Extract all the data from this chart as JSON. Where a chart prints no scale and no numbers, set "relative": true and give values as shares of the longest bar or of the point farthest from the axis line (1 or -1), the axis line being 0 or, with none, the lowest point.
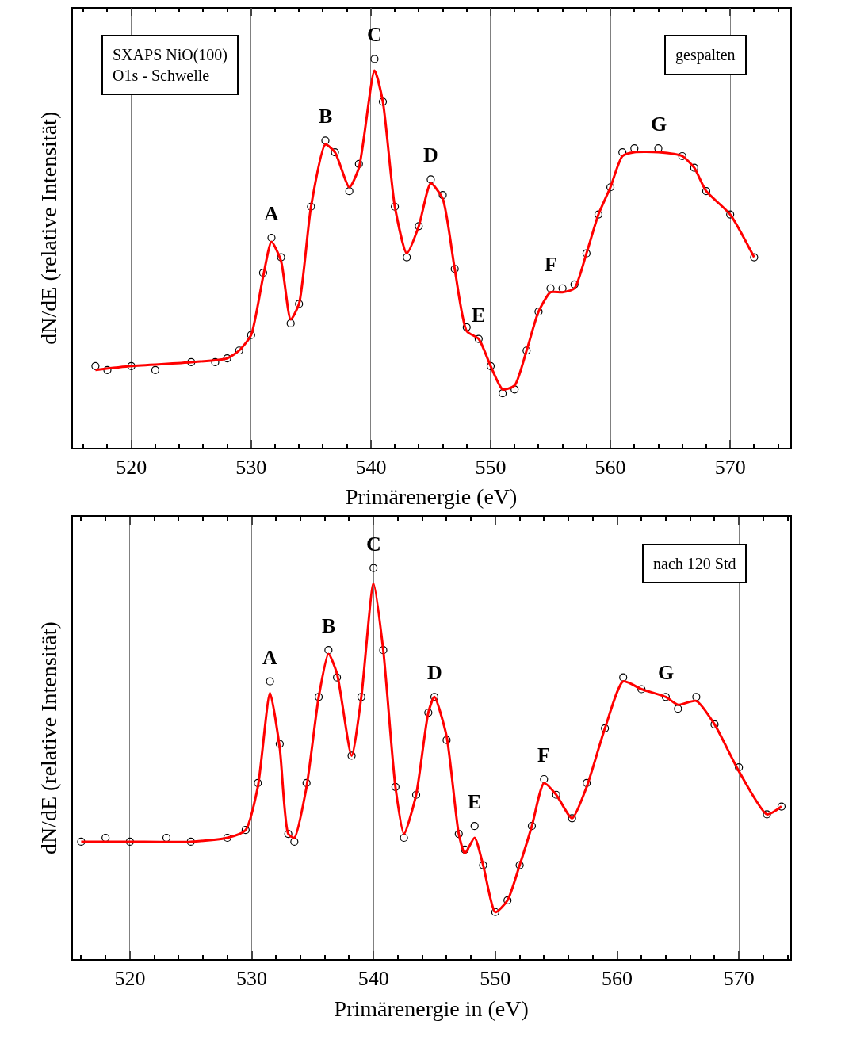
{
  "chart_data": [
    {
      "type": "scatter",
      "xlabel": "Primärenergie (eV)",
      "ylabel": "dN/dE (relative Intensität)",
      "xlim": [
        515.1,
        575.0
      ],
      "xticks": [
        520,
        530,
        540,
        550,
        560,
        570
      ],
      "grid": "x",
      "tick_labels": "x",
      "relative": true,
      "series": [
        {
          "marker": "circle",
          "color": "#000000",
          "x": [
            517,
            518,
            520,
            522,
            525,
            527,
            528,
            529,
            530,
            531,
            531.7,
            532.5,
            533.3,
            534,
            535,
            536.2,
            537,
            538.2,
            539,
            540.3,
            541,
            542,
            543,
            544,
            545,
            546,
            547,
            548,
            549,
            550,
            551,
            552,
            553,
            554,
            555,
            556,
            557,
            558,
            559,
            560,
            561,
            562,
            564,
            566,
            567,
            568,
            570,
            572
          ],
          "values": [
            0.21,
            0.2,
            0.21,
            0.2,
            0.22,
            0.22,
            0.23,
            0.25,
            0.29,
            0.45,
            0.54,
            0.49,
            0.32,
            0.37,
            0.62,
            0.79,
            0.76,
            0.66,
            0.73,
            1.0,
            0.89,
            0.62,
            0.49,
            0.57,
            0.69,
            0.65,
            0.46,
            0.31,
            0.28,
            0.21,
            0.14,
            0.15,
            0.25,
            0.35,
            0.41,
            0.41,
            0.42,
            0.5,
            0.6,
            0.67,
            0.76,
            0.77,
            0.77,
            0.75,
            0.72,
            0.66,
            0.6,
            0.49
          ]
        },
        {
          "type": "line",
          "color": "#ff0000",
          "x": [
            517,
            520,
            525,
            528,
            529,
            530,
            531,
            531.7,
            532.5,
            533.3,
            534,
            535,
            536.2,
            537,
            538.2,
            539,
            540.3,
            541,
            542,
            543,
            544,
            545,
            546,
            547,
            548,
            549,
            550,
            551,
            552,
            553,
            554,
            555,
            556,
            557,
            558,
            559,
            560,
            561,
            562,
            564,
            566,
            567,
            568,
            570,
            572
          ],
          "values": [
            0.2,
            0.21,
            0.22,
            0.23,
            0.25,
            0.29,
            0.44,
            0.53,
            0.48,
            0.33,
            0.37,
            0.62,
            0.78,
            0.76,
            0.67,
            0.72,
            0.97,
            0.89,
            0.62,
            0.5,
            0.57,
            0.68,
            0.64,
            0.46,
            0.3,
            0.28,
            0.21,
            0.15,
            0.16,
            0.25,
            0.35,
            0.4,
            0.4,
            0.41,
            0.5,
            0.6,
            0.67,
            0.75,
            0.76,
            0.76,
            0.75,
            0.72,
            0.66,
            0.6,
            0.49
          ]
        }
      ],
      "annotations": [
        "SXAPS NiO(100)\nO1s - Schwelle",
        "gespalten",
        {
          "text": "A",
          "x": 531.7,
          "y": 0.54
        },
        {
          "text": "B",
          "x": 536.2,
          "y": 0.79
        },
        {
          "text": "C",
          "x": 540.3,
          "y": 1.0
        },
        {
          "text": "D",
          "x": 545,
          "y": 0.69
        },
        {
          "text": "E",
          "x": 549,
          "y": 0.28
        },
        {
          "text": "F",
          "x": 555,
          "y": 0.41
        },
        {
          "text": "G",
          "x": 564,
          "y": 0.77
        }
      ]
    },
    {
      "type": "scatter",
      "xlabel": "Primärenergie in (eV)",
      "ylabel": "dN/dE (relative Intensität)",
      "xlim": [
        515.3,
        574.2
      ],
      "xticks": [
        520,
        530,
        540,
        550,
        560,
        570
      ],
      "grid": "x",
      "tick_labels": "x",
      "relative": true,
      "series": [
        {
          "marker": "circle",
          "color": "#000000",
          "x": [
            516,
            518,
            520,
            523,
            525,
            528,
            529.5,
            530.5,
            531.5,
            532.3,
            533,
            533.5,
            534.5,
            535.5,
            536.3,
            537,
            538.2,
            539,
            540,
            540.8,
            541.8,
            542.5,
            543.5,
            544.5,
            545,
            546,
            547,
            547.5,
            548.3,
            549,
            550,
            551,
            552,
            553,
            554,
            555,
            556.3,
            557.5,
            559,
            560.5,
            562,
            564,
            565,
            566.5,
            568,
            570,
            572.3,
            573.5
          ],
          "values": [
            0.3,
            0.31,
            0.3,
            0.31,
            0.3,
            0.31,
            0.33,
            0.45,
            0.71,
            0.55,
            0.32,
            0.3,
            0.45,
            0.67,
            0.79,
            0.72,
            0.52,
            0.67,
            1.0,
            0.79,
            0.44,
            0.31,
            0.42,
            0.63,
            0.67,
            0.56,
            0.32,
            0.28,
            0.34,
            0.24,
            0.12,
            0.15,
            0.24,
            0.34,
            0.46,
            0.42,
            0.36,
            0.45,
            0.59,
            0.72,
            0.69,
            0.67,
            0.64,
            0.67,
            0.6,
            0.49,
            0.37,
            0.39
          ]
        },
        {
          "type": "line",
          "color": "#ff0000",
          "x": [
            516,
            520,
            525,
            528,
            529.5,
            530.5,
            531.5,
            532.3,
            533,
            533.5,
            534.5,
            535.5,
            536.3,
            537,
            538.2,
            539,
            540,
            540.8,
            541.8,
            542.5,
            543.5,
            544.5,
            545,
            546,
            547,
            547.5,
            548.3,
            549,
            550,
            551,
            552,
            553,
            554,
            555,
            556.3,
            557.5,
            559,
            560.5,
            562,
            564,
            565,
            566.5,
            568,
            570,
            572.3,
            573.5
          ],
          "values": [
            0.3,
            0.3,
            0.3,
            0.31,
            0.33,
            0.44,
            0.68,
            0.54,
            0.32,
            0.31,
            0.44,
            0.67,
            0.78,
            0.73,
            0.52,
            0.67,
            0.96,
            0.79,
            0.44,
            0.32,
            0.42,
            0.63,
            0.67,
            0.57,
            0.32,
            0.27,
            0.31,
            0.24,
            0.12,
            0.15,
            0.24,
            0.34,
            0.45,
            0.42,
            0.36,
            0.44,
            0.59,
            0.71,
            0.69,
            0.67,
            0.65,
            0.66,
            0.6,
            0.48,
            0.37,
            0.39
          ]
        }
      ],
      "annotations": [
        "nach 120 Std",
        {
          "text": "A",
          "x": 531.5,
          "y": 0.71
        },
        {
          "text": "B",
          "x": 536.3,
          "y": 0.79
        },
        {
          "text": "C",
          "x": 540,
          "y": 1.0
        },
        {
          "text": "D",
          "x": 545,
          "y": 0.67
        },
        {
          "text": "E",
          "x": 548.3,
          "y": 0.34
        },
        {
          "text": "F",
          "x": 554,
          "y": 0.46
        },
        {
          "text": "G",
          "x": 564,
          "y": 0.67
        }
      ]
    }
  ]
}
